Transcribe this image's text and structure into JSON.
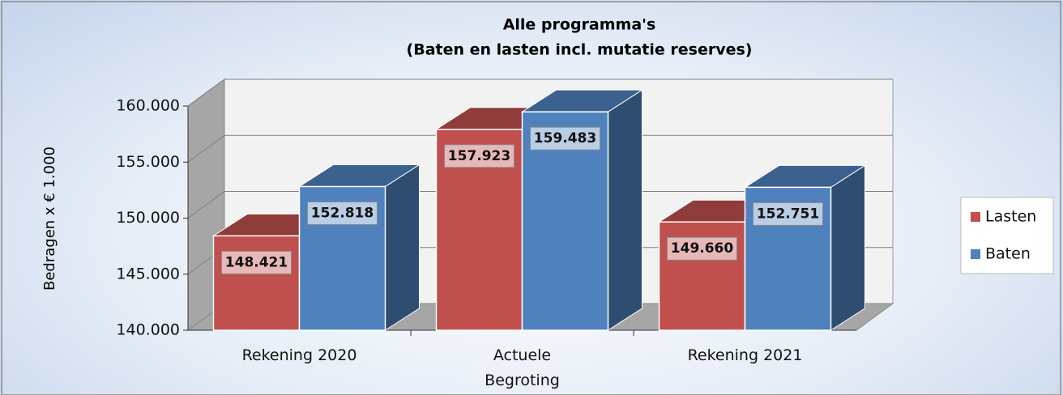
{
  "chart_data": {
    "type": "bar3d",
    "title": "Alle programma's",
    "subtitle": "(Baten en lasten incl. mutatie reserves)",
    "y_label": "Bedragen x € 1.000",
    "categories": [
      "Rekening 2020",
      "Actuele Begroting",
      "Rekening 2021"
    ],
    "series": [
      {
        "name": "Lasten",
        "color": "#c0504d",
        "values": [
          148421,
          157923,
          149660
        ],
        "value_labels": [
          "148.421",
          "157.923",
          "149.660"
        ]
      },
      {
        "name": "Baten",
        "color": "#4f81bd",
        "values": [
          152818,
          159483,
          152751
        ],
        "value_labels": [
          "152.818",
          "159.483",
          "152.751"
        ]
      }
    ],
    "ylim": [
      140000,
      160000
    ],
    "yticks": [
      {
        "value": 140000,
        "label": "140.000"
      },
      {
        "value": 145000,
        "label": "145.000"
      },
      {
        "value": 150000,
        "label": "150.000"
      },
      {
        "value": 155000,
        "label": "155.000"
      },
      {
        "value": 160000,
        "label": "160.000"
      }
    ],
    "grid": true,
    "legend": "right"
  }
}
